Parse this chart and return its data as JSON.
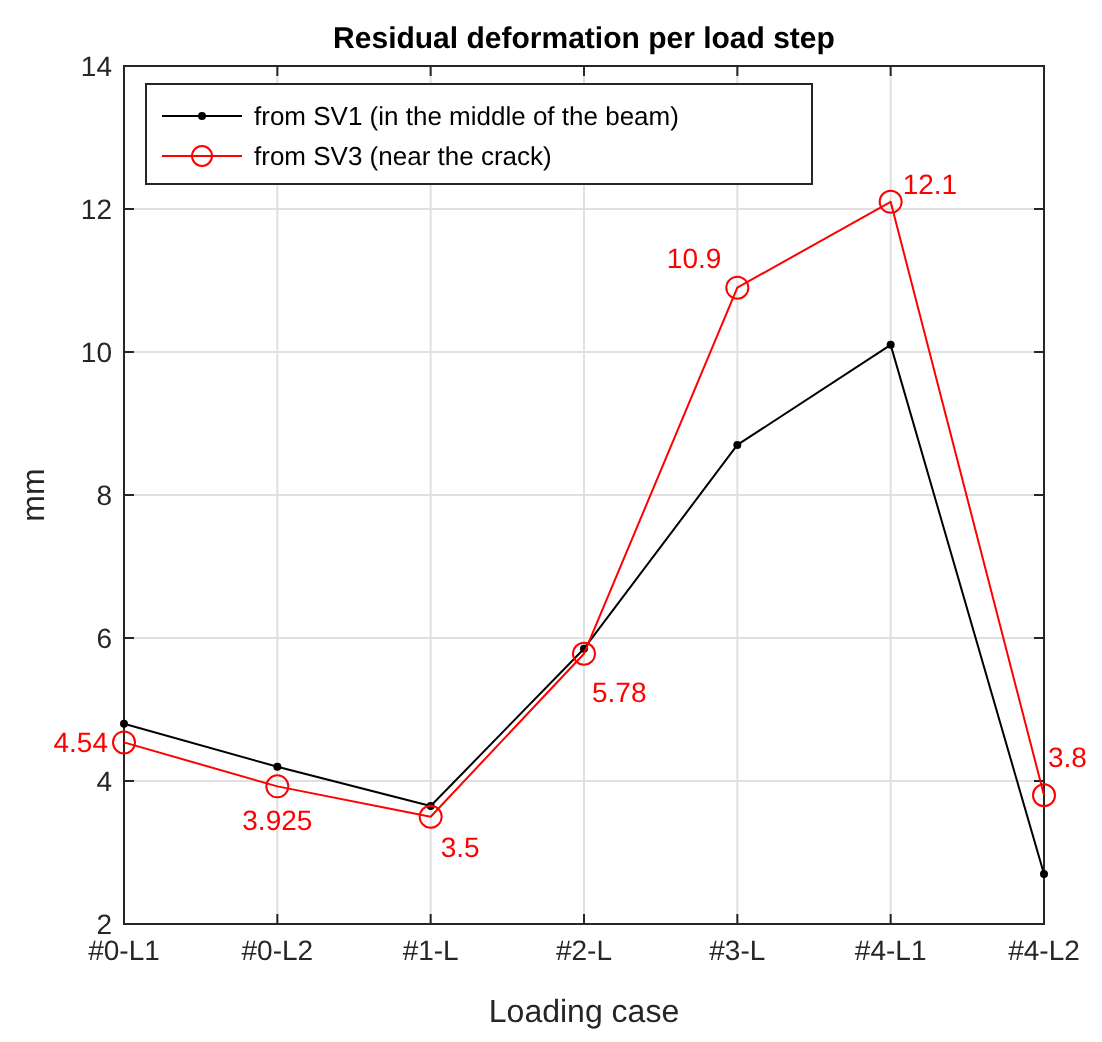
{
  "chart_data": {
    "type": "line",
    "title": "Residual deformation per load step",
    "xlabel": "Loading case",
    "ylabel": "mm",
    "categories": [
      "#0-L1",
      "#0-L2",
      "#1-L",
      "#2-L",
      "#3-L",
      "#4-L1",
      "#4-L2"
    ],
    "series": [
      {
        "name": "from SV1 (in the middle of the beam)",
        "color": "#000000",
        "marker": "point",
        "values": [
          4.8,
          4.2,
          3.65,
          5.85,
          8.7,
          10.1,
          2.7
        ]
      },
      {
        "name": "from SV3 (near the crack)",
        "color": "#ff0000",
        "marker": "circle",
        "values": [
          4.54,
          3.925,
          3.5,
          5.78,
          10.9,
          12.1,
          3.8
        ],
        "value_labels": [
          "4.54",
          "3.925",
          "3.5",
          "5.78",
          "10.9",
          "12.1",
          "3.8"
        ]
      }
    ],
    "ylim": [
      2,
      14
    ],
    "yticks": [
      2,
      4,
      6,
      8,
      10,
      12,
      14
    ],
    "grid": true,
    "legend": "top left",
    "line_style": "solid"
  }
}
